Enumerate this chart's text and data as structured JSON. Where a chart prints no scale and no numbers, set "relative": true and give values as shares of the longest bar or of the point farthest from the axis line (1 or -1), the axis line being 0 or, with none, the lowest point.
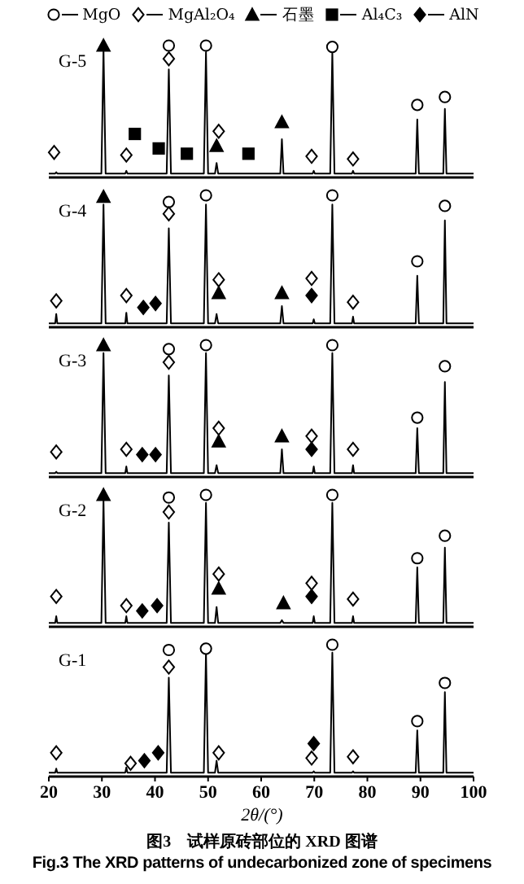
{
  "chart_data": [
    {
      "type": "line",
      "title": "G-5",
      "relative": true,
      "xlim": [
        20,
        100
      ],
      "tick_labels": false,
      "legend": "top",
      "x": [
        20,
        21.2,
        21.4,
        21.6,
        29.9,
        30.3,
        30.7,
        34.4,
        34.6,
        34.8,
        42.2,
        42.6,
        43.0,
        49.2,
        49.6,
        50.0,
        51.3,
        51.6,
        51.9,
        63.6,
        63.9,
        64.2,
        69.7,
        69.9,
        70.1,
        73.0,
        73.4,
        73.8,
        77.1,
        77.3,
        77.5,
        89.1,
        89.4,
        89.7,
        94.3,
        94.6,
        94.9,
        100
      ],
      "series": [
        {
          "color": "#000000",
          "values": [
            0.03,
            0.03,
            0.04,
            0.03,
            0.03,
            0.97,
            0.03,
            0.03,
            0.05,
            0.03,
            0.03,
            0.82,
            0.03,
            0.03,
            0.95,
            0.03,
            0.03,
            0.11,
            0.03,
            0.03,
            0.29,
            0.03,
            0.03,
            0.05,
            0.03,
            0.03,
            0.95,
            0.03,
            0.03,
            0.05,
            0.03,
            0.03,
            0.44,
            0.03,
            0.03,
            0.52,
            0.03,
            0.03
          ]
        },
        {
          "type": "scatter",
          "name": "MgO",
          "color": "#ffffff",
          "marker": "circle",
          "x": [
            42.6,
            49.6,
            73.4,
            89.4,
            94.6
          ],
          "values": [
            1.0,
            1.0,
            0.99,
            0.55,
            0.61
          ]
        },
        {
          "type": "scatter",
          "name": "MgAl₂O₄",
          "color": "#ffffff",
          "marker": "diamond",
          "x": [
            21.0,
            34.6,
            42.6,
            52.0,
            69.5,
            77.3
          ],
          "values": [
            0.19,
            0.17,
            0.9,
            0.35,
            0.16,
            0.14
          ]
        },
        {
          "type": "scatter",
          "name": "石墨",
          "color": "#000000",
          "marker": "triangle",
          "x": [
            30.3,
            51.6,
            63.9
          ],
          "values": [
            1.0,
            0.24,
            0.42
          ]
        },
        {
          "type": "scatter",
          "name": "Al₄C₃",
          "color": "#000000",
          "marker": "square",
          "x": [
            36.2,
            40.7,
            46.0,
            57.6
          ],
          "values": [
            0.33,
            0.22,
            0.18,
            0.18
          ]
        }
      ]
    },
    {
      "type": "line",
      "title": "G-4",
      "relative": true,
      "xlim": [
        20,
        100
      ],
      "tick_labels": false,
      "x": [
        20,
        21.2,
        21.4,
        21.6,
        29.9,
        30.3,
        30.7,
        34.4,
        34.6,
        34.8,
        42.2,
        42.6,
        43.0,
        49.2,
        49.6,
        50.0,
        51.3,
        51.6,
        51.9,
        63.6,
        63.9,
        64.2,
        69.7,
        69.9,
        70.1,
        73.0,
        73.4,
        73.8,
        77.1,
        77.3,
        77.5,
        89.1,
        89.4,
        89.7,
        94.3,
        94.6,
        94.9,
        100
      ],
      "series": [
        {
          "color": "#000000",
          "values": [
            0.03,
            0.03,
            0.1,
            0.03,
            0.03,
            0.93,
            0.03,
            0.03,
            0.11,
            0.03,
            0.03,
            0.75,
            0.03,
            0.03,
            0.93,
            0.03,
            0.03,
            0.1,
            0.03,
            0.03,
            0.16,
            0.03,
            0.03,
            0.06,
            0.03,
            0.03,
            0.93,
            0.03,
            0.03,
            0.08,
            0.03,
            0.03,
            0.39,
            0.03,
            0.03,
            0.81,
            0.03,
            0.03
          ]
        },
        {
          "type": "scatter",
          "color": "#ffffff",
          "marker": "circle",
          "x": [
            42.6,
            49.6,
            73.4,
            89.4,
            94.6
          ],
          "values": [
            0.95,
            1.0,
            1.0,
            0.5,
            0.92
          ]
        },
        {
          "type": "scatter",
          "color": "#ffffff",
          "marker": "diamond",
          "x": [
            21.4,
            34.6,
            42.6,
            52.0,
            69.5,
            77.3
          ],
          "values": [
            0.2,
            0.24,
            0.86,
            0.36,
            0.37,
            0.19
          ]
        },
        {
          "type": "scatter",
          "color": "#000000",
          "marker": "triangle",
          "x": [
            30.3,
            52.0,
            63.9
          ],
          "values": [
            0.99,
            0.26,
            0.26
          ]
        },
        {
          "type": "scatter",
          "name": "AlN",
          "color": "#000000",
          "marker": "diamond",
          "x": [
            37.8,
            40.1,
            69.5
          ],
          "values": [
            0.15,
            0.18,
            0.24
          ]
        }
      ]
    },
    {
      "type": "line",
      "title": "G-3",
      "relative": true,
      "xlim": [
        20,
        100
      ],
      "tick_labels": false,
      "x": [
        20,
        21.2,
        21.4,
        21.6,
        29.9,
        30.3,
        30.7,
        34.4,
        34.6,
        34.8,
        42.2,
        42.6,
        43.0,
        49.2,
        49.6,
        50.0,
        51.3,
        51.6,
        51.9,
        63.6,
        63.9,
        64.2,
        69.7,
        69.9,
        70.1,
        73.0,
        73.4,
        73.8,
        77.1,
        77.3,
        77.5,
        89.1,
        89.4,
        89.7,
        94.3,
        94.6,
        94.9,
        100
      ],
      "series": [
        {
          "color": "#000000",
          "values": [
            0.03,
            0.03,
            0.04,
            0.03,
            0.03,
            0.94,
            0.03,
            0.03,
            0.08,
            0.03,
            0.03,
            0.77,
            0.03,
            0.03,
            0.94,
            0.03,
            0.03,
            0.09,
            0.03,
            0.03,
            0.21,
            0.03,
            0.03,
            0.08,
            0.03,
            0.03,
            0.94,
            0.03,
            0.03,
            0.09,
            0.03,
            0.03,
            0.37,
            0.03,
            0.03,
            0.72,
            0.03,
            0.03
          ]
        },
        {
          "type": "scatter",
          "color": "#ffffff",
          "marker": "circle",
          "x": [
            42.6,
            49.6,
            73.4,
            89.4,
            94.6
          ],
          "values": [
            0.97,
            1.0,
            1.0,
            0.45,
            0.84
          ]
        },
        {
          "type": "scatter",
          "color": "#ffffff",
          "marker": "diamond",
          "x": [
            21.4,
            34.6,
            42.6,
            52.0,
            69.5,
            77.3
          ],
          "values": [
            0.19,
            0.21,
            0.87,
            0.37,
            0.31,
            0.21
          ]
        },
        {
          "type": "scatter",
          "color": "#000000",
          "marker": "triangle",
          "x": [
            30.3,
            52.0,
            63.9
          ],
          "values": [
            1.0,
            0.27,
            0.31
          ]
        },
        {
          "type": "scatter",
          "color": "#000000",
          "marker": "diamond",
          "x": [
            37.6,
            40.1,
            69.5
          ],
          "values": [
            0.17,
            0.17,
            0.21
          ]
        }
      ]
    },
    {
      "type": "line",
      "title": "G-2",
      "relative": true,
      "xlim": [
        20,
        100
      ],
      "tick_labels": false,
      "x": [
        20,
        21.2,
        21.4,
        21.6,
        29.9,
        30.3,
        30.7,
        34.4,
        34.6,
        34.8,
        42.2,
        42.6,
        43.0,
        49.2,
        49.6,
        50.0,
        51.3,
        51.6,
        51.9,
        63.6,
        63.9,
        64.2,
        69.7,
        69.9,
        70.1,
        73.0,
        73.4,
        73.8,
        77.1,
        77.3,
        77.5,
        89.1,
        89.4,
        89.7,
        94.3,
        94.6,
        94.9,
        100
      ],
      "series": [
        {
          "color": "#000000",
          "values": [
            0.03,
            0.03,
            0.08,
            0.03,
            0.03,
            0.96,
            0.03,
            0.03,
            0.08,
            0.03,
            0.03,
            0.79,
            0.03,
            0.03,
            0.94,
            0.03,
            0.03,
            0.15,
            0.03,
            0.03,
            0.05,
            0.03,
            0.03,
            0.08,
            0.03,
            0.03,
            0.94,
            0.03,
            0.03,
            0.08,
            0.03,
            0.03,
            0.45,
            0.03,
            0.03,
            0.6,
            0.03,
            0.03
          ]
        },
        {
          "type": "scatter",
          "color": "#ffffff",
          "marker": "circle",
          "x": [
            42.6,
            49.6,
            73.4,
            89.4,
            94.6
          ],
          "values": [
            0.98,
            1.0,
            1.0,
            0.52,
            0.69
          ]
        },
        {
          "type": "scatter",
          "color": "#ffffff",
          "marker": "diamond",
          "x": [
            21.4,
            34.6,
            42.6,
            52.0,
            69.5,
            77.3
          ],
          "values": [
            0.23,
            0.16,
            0.87,
            0.4,
            0.33,
            0.21
          ]
        },
        {
          "type": "scatter",
          "color": "#000000",
          "marker": "triangle",
          "x": [
            30.3,
            52.0,
            64.2
          ],
          "values": [
            1.0,
            0.29,
            0.18
          ]
        },
        {
          "type": "scatter",
          "color": "#000000",
          "marker": "diamond",
          "x": [
            37.6,
            40.4,
            69.5
          ],
          "values": [
            0.12,
            0.16,
            0.23
          ]
        }
      ]
    },
    {
      "type": "line",
      "title": "G-1",
      "relative": true,
      "xlim": [
        20,
        100
      ],
      "xticks": [
        20,
        30,
        40,
        50,
        60,
        70,
        80,
        90,
        100
      ],
      "xlabel": "2θ/(°)",
      "x": [
        20,
        21.2,
        21.4,
        21.6,
        29.9,
        30.3,
        30.7,
        34.4,
        34.6,
        34.8,
        42.2,
        42.6,
        43.0,
        49.2,
        49.6,
        50.0,
        51.3,
        51.6,
        51.9,
        63.6,
        63.9,
        64.2,
        69.7,
        69.9,
        70.1,
        73.0,
        73.4,
        73.8,
        77.1,
        77.3,
        77.5,
        89.1,
        89.4,
        89.7,
        94.3,
        94.6,
        94.9,
        100
      ],
      "annotations": [
        "图3　试样原砖部位的 XRD 图谱",
        "Fig.3 The XRD patterns of undecarbonized zone of specimens"
      ],
      "series": [
        {
          "color": "#000000",
          "values": [
            0.03,
            0.03,
            0.06,
            0.03,
            0.03,
            0.03,
            0.03,
            0.03,
            0.07,
            0.03,
            0.03,
            0.75,
            0.03,
            0.03,
            0.94,
            0.03,
            0.03,
            0.12,
            0.03,
            0.03,
            0.03,
            0.03,
            0.03,
            0.04,
            0.03,
            0.03,
            0.94,
            0.03,
            0.03,
            0.04,
            0.03,
            0.03,
            0.35,
            0.03,
            0.03,
            0.64,
            0.03,
            0.03
          ]
        },
        {
          "type": "scatter",
          "color": "#ffffff",
          "marker": "circle",
          "x": [
            42.6,
            49.6,
            73.4,
            89.4,
            94.6
          ],
          "values": [
            0.96,
            0.97,
            1.0,
            0.42,
            0.71
          ]
        },
        {
          "type": "scatter",
          "color": "#ffffff",
          "marker": "diamond",
          "x": [
            21.4,
            35.4,
            42.6,
            52.0,
            69.5,
            77.3
          ],
          "values": [
            0.18,
            0.1,
            0.83,
            0.18,
            0.14,
            0.15
          ]
        },
        {
          "type": "scatter",
          "color": "#000000",
          "marker": "diamond",
          "x": [
            38.0,
            40.6,
            69.9
          ],
          "values": [
            0.12,
            0.18,
            0.25
          ]
        }
      ]
    }
  ]
}
